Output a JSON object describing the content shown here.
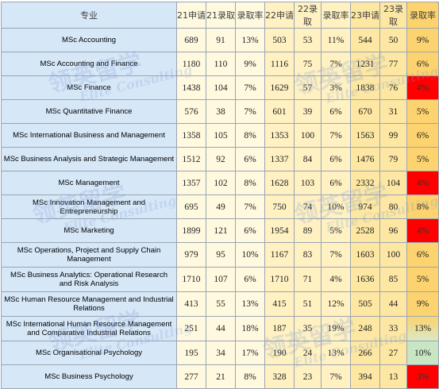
{
  "headers": {
    "program": "专业",
    "a21": "21申请",
    "o21": "21录取",
    "r21": "录取率",
    "a22": "22申请",
    "o22": "22录取",
    "r22": "录取率",
    "a23": "23申请",
    "o23": "23录取",
    "r23": "录取率"
  },
  "rows": [
    {
      "program": "MSc Accounting",
      "a21": "689",
      "o21": "91",
      "r21": "13%",
      "a22": "503",
      "o22": "53",
      "r22": "11%",
      "a23": "544",
      "o23": "50",
      "r23": "9%"
    },
    {
      "program": "MSc Accounting and Finance",
      "a21": "1180",
      "o21": "110",
      "r21": "9%",
      "a22": "1116",
      "o22": "75",
      "r22": "7%",
      "a23": "1231",
      "o23": "77",
      "r23": "6%"
    },
    {
      "program": "MSc Finance",
      "a21": "1438",
      "o21": "104",
      "r21": "7%",
      "a22": "1629",
      "o22": "57",
      "r22": "3%",
      "a23": "1838",
      "o23": "76",
      "r23": "4%"
    },
    {
      "program": "MSc Quantitative Finance",
      "a21": "576",
      "o21": "38",
      "r21": "7%",
      "a22": "601",
      "o22": "39",
      "r22": "6%",
      "a23": "670",
      "o23": "31",
      "r23": "5%"
    },
    {
      "program": "MSc International Business and Management",
      "a21": "1358",
      "o21": "105",
      "r21": "8%",
      "a22": "1353",
      "o22": "100",
      "r22": "7%",
      "a23": "1563",
      "o23": "99",
      "r23": "6%"
    },
    {
      "program": "MSc Business Analysis and Strategic Management",
      "a21": "1512",
      "o21": "92",
      "r21": "6%",
      "a22": "1337",
      "o22": "84",
      "r22": "6%",
      "a23": "1476",
      "o23": "79",
      "r23": "5%"
    },
    {
      "program": "MSc Management",
      "a21": "1357",
      "o21": "102",
      "r21": "8%",
      "a22": "1628",
      "o22": "103",
      "r22": "6%",
      "a23": "2332",
      "o23": "104",
      "r23": "4%"
    },
    {
      "program": "MSc Innovation Management and Entrepreneurship",
      "a21": "695",
      "o21": "49",
      "r21": "7%",
      "a22": "750",
      "o22": "74",
      "r22": "10%",
      "a23": "974",
      "o23": "80",
      "r23": "8%"
    },
    {
      "program": "MSc Marketing",
      "a21": "1899",
      "o21": "121",
      "r21": "6%",
      "a22": "1954",
      "o22": "89",
      "r22": "5%",
      "a23": "2528",
      "o23": "96",
      "r23": "4%"
    },
    {
      "program": "MSc Operations, Project and Supply Chain Management",
      "a21": "979",
      "o21": "95",
      "r21": "10%",
      "a22": "1167",
      "o22": "83",
      "r22": "7%",
      "a23": "1603",
      "o23": "100",
      "r23": "6%"
    },
    {
      "program": "MSc Business Analytics: Operational Research and Risk Analysis",
      "a21": "1710",
      "o21": "107",
      "r21": "6%",
      "a22": "1710",
      "o22": "71",
      "r22": "4%",
      "a23": "1636",
      "o23": "85",
      "r23": "5%"
    },
    {
      "program": "MSc Human Resource Management and Industrial Relations",
      "a21": "413",
      "o21": "55",
      "r21": "13%",
      "a22": "415",
      "o22": "51",
      "r22": "12%",
      "a23": "505",
      "o23": "44",
      "r23": "9%"
    },
    {
      "program": "MSc International Human Resource Management and Comparative Industrial Relations",
      "a21": "251",
      "o21": "44",
      "r21": "18%",
      "a22": "187",
      "o22": "35",
      "r22": "19%",
      "a23": "248",
      "o23": "33",
      "r23": "13%"
    },
    {
      "program": "MSc Organisational Psychology",
      "a21": "195",
      "o21": "34",
      "r21": "17%",
      "a22": "190",
      "o22": "24",
      "r22": "13%",
      "a23": "266",
      "o23": "27",
      "r23": "10%"
    },
    {
      "program": "MSc Business Psychology",
      "a21": "277",
      "o21": "21",
      "r21": "8%",
      "a22": "328",
      "o22": "23",
      "r22": "7%",
      "a23": "394",
      "o23": "13",
      "r23": "3%"
    }
  ],
  "watermark": {
    "cn": "领英留学",
    "en": "Elite Consulting"
  }
}
